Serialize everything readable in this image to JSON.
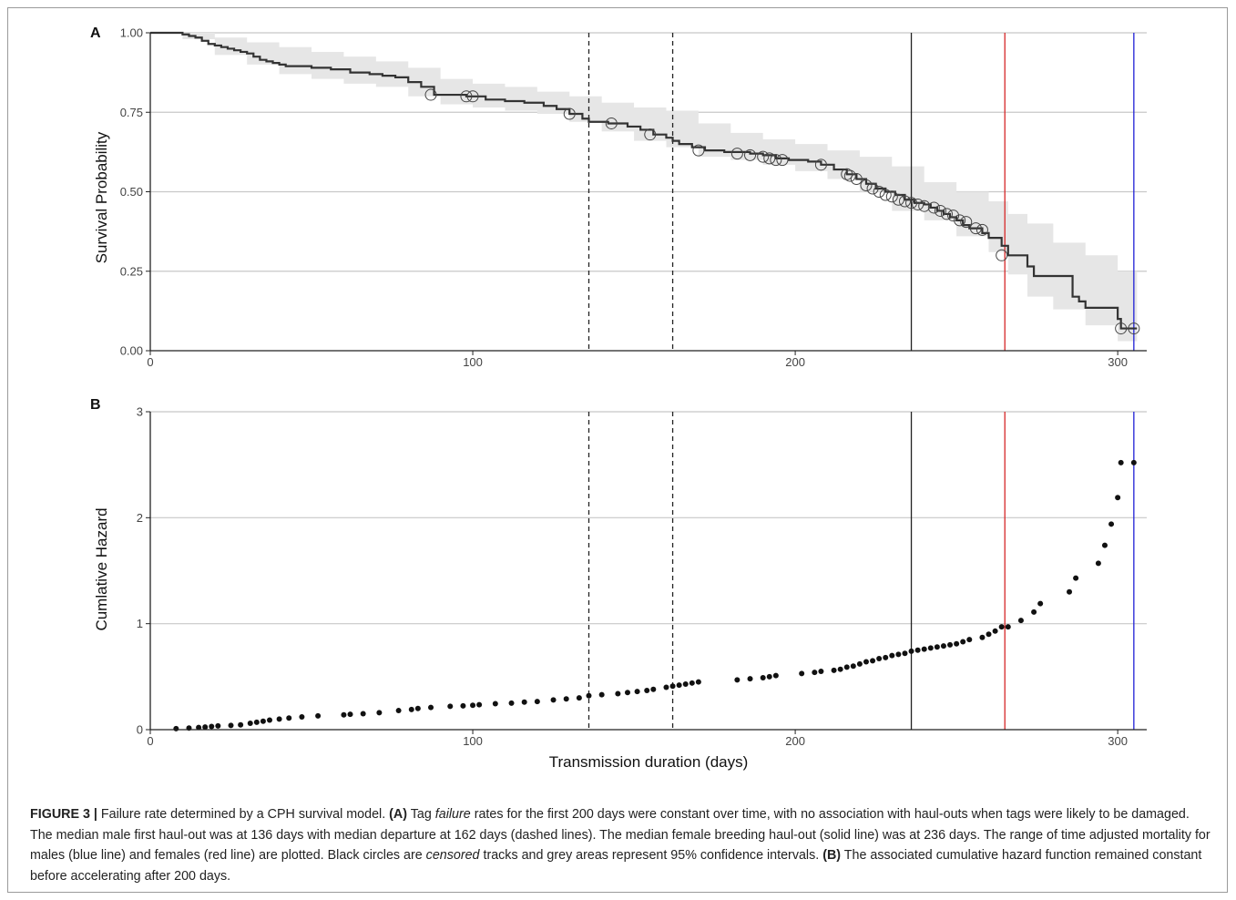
{
  "chart_data": [
    {
      "panel": "A",
      "type": "line",
      "step": true,
      "xlabel": "",
      "ylabel": "Survival Probability",
      "xlim": [
        0,
        309
      ],
      "ylim": [
        0,
        1
      ],
      "xticks": [
        0,
        100,
        200,
        300
      ],
      "yticks": [
        "0.00",
        "0.25",
        "0.50",
        "0.75",
        "1.00"
      ],
      "ytick_values": [
        0,
        0.25,
        0.5,
        0.75,
        1.0
      ],
      "grid": "horizontal",
      "survival_curve": [
        [
          0,
          1.0
        ],
        [
          8,
          1.0
        ],
        [
          10,
          0.995
        ],
        [
          12,
          0.99
        ],
        [
          14,
          0.985
        ],
        [
          16,
          0.975
        ],
        [
          18,
          0.965
        ],
        [
          20,
          0.96
        ],
        [
          22,
          0.955
        ],
        [
          24,
          0.95
        ],
        [
          26,
          0.945
        ],
        [
          28,
          0.94
        ],
        [
          30,
          0.935
        ],
        [
          32,
          0.925
        ],
        [
          34,
          0.915
        ],
        [
          36,
          0.91
        ],
        [
          38,
          0.905
        ],
        [
          40,
          0.9
        ],
        [
          42,
          0.895
        ],
        [
          50,
          0.89
        ],
        [
          56,
          0.885
        ],
        [
          62,
          0.875
        ],
        [
          68,
          0.87
        ],
        [
          72,
          0.865
        ],
        [
          76,
          0.86
        ],
        [
          80,
          0.845
        ],
        [
          84,
          0.83
        ],
        [
          88,
          0.805
        ],
        [
          98,
          0.8
        ],
        [
          104,
          0.79
        ],
        [
          110,
          0.785
        ],
        [
          116,
          0.78
        ],
        [
          122,
          0.77
        ],
        [
          126,
          0.76
        ],
        [
          130,
          0.745
        ],
        [
          134,
          0.73
        ],
        [
          136,
          0.72
        ],
        [
          142,
          0.715
        ],
        [
          148,
          0.705
        ],
        [
          152,
          0.695
        ],
        [
          156,
          0.68
        ],
        [
          160,
          0.67
        ],
        [
          162,
          0.66
        ],
        [
          164,
          0.65
        ],
        [
          168,
          0.64
        ],
        [
          172,
          0.63
        ],
        [
          178,
          0.625
        ],
        [
          186,
          0.62
        ],
        [
          190,
          0.615
        ],
        [
          194,
          0.605
        ],
        [
          198,
          0.6
        ],
        [
          204,
          0.595
        ],
        [
          208,
          0.585
        ],
        [
          212,
          0.57
        ],
        [
          216,
          0.555
        ],
        [
          219,
          0.54
        ],
        [
          222,
          0.525
        ],
        [
          225,
          0.51
        ],
        [
          228,
          0.5
        ],
        [
          231,
          0.49
        ],
        [
          234,
          0.475
        ],
        [
          237,
          0.465
        ],
        [
          240,
          0.46
        ],
        [
          242,
          0.45
        ],
        [
          244,
          0.44
        ],
        [
          246,
          0.43
        ],
        [
          248,
          0.42
        ],
        [
          250,
          0.41
        ],
        [
          252,
          0.395
        ],
        [
          254,
          0.385
        ],
        [
          258,
          0.37
        ],
        [
          260,
          0.355
        ],
        [
          264,
          0.33
        ],
        [
          266,
          0.3
        ],
        [
          272,
          0.265
        ],
        [
          274,
          0.235
        ],
        [
          286,
          0.17
        ],
        [
          288,
          0.155
        ],
        [
          290,
          0.135
        ],
        [
          300,
          0.1
        ],
        [
          301,
          0.07
        ],
        [
          306,
          0.07
        ]
      ],
      "ci_lower": [
        [
          0,
          1.0
        ],
        [
          10,
          0.98
        ],
        [
          20,
          0.93
        ],
        [
          30,
          0.9
        ],
        [
          40,
          0.87
        ],
        [
          50,
          0.855
        ],
        [
          60,
          0.84
        ],
        [
          70,
          0.83
        ],
        [
          80,
          0.8
        ],
        [
          90,
          0.775
        ],
        [
          100,
          0.765
        ],
        [
          110,
          0.755
        ],
        [
          120,
          0.745
        ],
        [
          130,
          0.72
        ],
        [
          140,
          0.69
        ],
        [
          150,
          0.66
        ],
        [
          160,
          0.64
        ],
        [
          170,
          0.61
        ],
        [
          180,
          0.6
        ],
        [
          190,
          0.585
        ],
        [
          200,
          0.565
        ],
        [
          210,
          0.54
        ],
        [
          220,
          0.5
        ],
        [
          230,
          0.44
        ],
        [
          240,
          0.41
        ],
        [
          250,
          0.36
        ],
        [
          260,
          0.31
        ],
        [
          266,
          0.24
        ],
        [
          272,
          0.17
        ],
        [
          280,
          0.13
        ],
        [
          290,
          0.08
        ],
        [
          300,
          0.03
        ],
        [
          306,
          0.02
        ]
      ],
      "ci_upper": [
        [
          0,
          1.0
        ],
        [
          10,
          1.0
        ],
        [
          20,
          0.985
        ],
        [
          30,
          0.97
        ],
        [
          40,
          0.955
        ],
        [
          50,
          0.94
        ],
        [
          60,
          0.925
        ],
        [
          70,
          0.91
        ],
        [
          80,
          0.89
        ],
        [
          90,
          0.855
        ],
        [
          100,
          0.84
        ],
        [
          110,
          0.83
        ],
        [
          120,
          0.815
        ],
        [
          130,
          0.8
        ],
        [
          140,
          0.78
        ],
        [
          150,
          0.765
        ],
        [
          160,
          0.755
        ],
        [
          170,
          0.715
        ],
        [
          180,
          0.685
        ],
        [
          190,
          0.665
        ],
        [
          200,
          0.65
        ],
        [
          210,
          0.63
        ],
        [
          220,
          0.61
        ],
        [
          230,
          0.58
        ],
        [
          240,
          0.53
        ],
        [
          250,
          0.5
        ],
        [
          260,
          0.47
        ],
        [
          266,
          0.43
        ],
        [
          272,
          0.4
        ],
        [
          280,
          0.34
        ],
        [
          290,
          0.3
        ],
        [
          300,
          0.25
        ],
        [
          306,
          0.2
        ]
      ],
      "censored": [
        [
          87,
          0.805
        ],
        [
          98,
          0.8
        ],
        [
          100,
          0.8
        ],
        [
          130,
          0.745
        ],
        [
          143,
          0.715
        ],
        [
          155,
          0.68
        ],
        [
          170,
          0.63
        ],
        [
          182,
          0.62
        ],
        [
          186,
          0.615
        ],
        [
          190,
          0.61
        ],
        [
          192,
          0.605
        ],
        [
          194,
          0.6
        ],
        [
          196,
          0.6
        ],
        [
          208,
          0.585
        ],
        [
          216,
          0.555
        ],
        [
          217,
          0.55
        ],
        [
          219,
          0.54
        ],
        [
          222,
          0.52
        ],
        [
          224,
          0.51
        ],
        [
          226,
          0.5
        ],
        [
          228,
          0.49
        ],
        [
          230,
          0.485
        ],
        [
          232,
          0.475
        ],
        [
          234,
          0.47
        ],
        [
          236,
          0.465
        ],
        [
          238,
          0.46
        ],
        [
          240,
          0.455
        ],
        [
          243,
          0.45
        ],
        [
          245,
          0.44
        ],
        [
          247,
          0.43
        ],
        [
          249,
          0.425
        ],
        [
          251,
          0.41
        ],
        [
          253,
          0.405
        ],
        [
          256,
          0.385
        ],
        [
          258,
          0.38
        ],
        [
          264,
          0.3
        ],
        [
          301,
          0.07
        ],
        [
          305,
          0.07
        ]
      ]
    },
    {
      "panel": "B",
      "type": "scatter",
      "xlabel": "Transmission duration (days)",
      "ylabel": "Cumlative Hazard",
      "xlim": [
        0,
        309
      ],
      "ylim": [
        0,
        3
      ],
      "xticks": [
        0,
        100,
        200,
        300
      ],
      "yticks": [
        "0",
        "1",
        "2",
        "3"
      ],
      "ytick_values": [
        0,
        1,
        2,
        3
      ],
      "grid": "horizontal",
      "points": [
        [
          8,
          0.01
        ],
        [
          12,
          0.015
        ],
        [
          15,
          0.02
        ],
        [
          17,
          0.025
        ],
        [
          19,
          0.03
        ],
        [
          21,
          0.035
        ],
        [
          25,
          0.04
        ],
        [
          28,
          0.045
        ],
        [
          31,
          0.06
        ],
        [
          33,
          0.07
        ],
        [
          35,
          0.08
        ],
        [
          37,
          0.09
        ],
        [
          40,
          0.1
        ],
        [
          43,
          0.11
        ],
        [
          47,
          0.12
        ],
        [
          52,
          0.13
        ],
        [
          60,
          0.14
        ],
        [
          62,
          0.145
        ],
        [
          66,
          0.15
        ],
        [
          71,
          0.16
        ],
        [
          77,
          0.18
        ],
        [
          81,
          0.19
        ],
        [
          83,
          0.2
        ],
        [
          87,
          0.21
        ],
        [
          93,
          0.22
        ],
        [
          97,
          0.225
        ],
        [
          100,
          0.23
        ],
        [
          102,
          0.235
        ],
        [
          107,
          0.245
        ],
        [
          112,
          0.25
        ],
        [
          116,
          0.26
        ],
        [
          120,
          0.265
        ],
        [
          125,
          0.28
        ],
        [
          129,
          0.29
        ],
        [
          133,
          0.3
        ],
        [
          136,
          0.32
        ],
        [
          140,
          0.33
        ],
        [
          145,
          0.34
        ],
        [
          148,
          0.35
        ],
        [
          151,
          0.36
        ],
        [
          154,
          0.37
        ],
        [
          156,
          0.38
        ],
        [
          160,
          0.4
        ],
        [
          162,
          0.41
        ],
        [
          164,
          0.42
        ],
        [
          166,
          0.43
        ],
        [
          168,
          0.44
        ],
        [
          170,
          0.45
        ],
        [
          182,
          0.47
        ],
        [
          186,
          0.48
        ],
        [
          190,
          0.49
        ],
        [
          192,
          0.5
        ],
        [
          194,
          0.51
        ],
        [
          202,
          0.53
        ],
        [
          206,
          0.54
        ],
        [
          208,
          0.55
        ],
        [
          212,
          0.56
        ],
        [
          214,
          0.57
        ],
        [
          216,
          0.59
        ],
        [
          218,
          0.6
        ],
        [
          220,
          0.62
        ],
        [
          222,
          0.64
        ],
        [
          224,
          0.65
        ],
        [
          226,
          0.67
        ],
        [
          228,
          0.68
        ],
        [
          230,
          0.7
        ],
        [
          232,
          0.71
        ],
        [
          234,
          0.72
        ],
        [
          236,
          0.74
        ],
        [
          238,
          0.75
        ],
        [
          240,
          0.76
        ],
        [
          242,
          0.77
        ],
        [
          244,
          0.78
        ],
        [
          246,
          0.79
        ],
        [
          248,
          0.8
        ],
        [
          250,
          0.81
        ],
        [
          252,
          0.83
        ],
        [
          254,
          0.85
        ],
        [
          258,
          0.87
        ],
        [
          260,
          0.9
        ],
        [
          262,
          0.93
        ],
        [
          264,
          0.97
        ],
        [
          266,
          0.97
        ],
        [
          270,
          1.03
        ],
        [
          274,
          1.11
        ],
        [
          276,
          1.19
        ],
        [
          285,
          1.3
        ],
        [
          287,
          1.43
        ],
        [
          294,
          1.57
        ],
        [
          296,
          1.74
        ],
        [
          298,
          1.94
        ],
        [
          300,
          2.19
        ],
        [
          301,
          2.52
        ],
        [
          305,
          2.52
        ]
      ]
    }
  ],
  "reference_lines": [
    {
      "x": 136,
      "style": "dashed",
      "color": "#222222"
    },
    {
      "x": 162,
      "style": "dashed",
      "color": "#222222"
    },
    {
      "x": 236,
      "style": "solid",
      "color": "#222222"
    },
    {
      "x": 265,
      "style": "solid",
      "color": "#d62728"
    },
    {
      "x": 305,
      "style": "solid",
      "color": "#1f1fd6"
    }
  ],
  "colors": {
    "curve": "#333333",
    "ci_fill": "#e6e6e6",
    "grid": "#c8c8c8",
    "points": "#111111",
    "axis": "#222222"
  },
  "caption": {
    "label": "FIGURE 3 |",
    "intro": " Failure rate determined by a CPH survival model. ",
    "a_label": "(A)",
    "a_text_1": " Tag ",
    "a_italic": "failure",
    "a_text_2": " rates for the first 200 days were constant over time, with no association with haul-outs when tags were likely to be damaged. The median male first haul-out was at 136 days with median departure at 162 days (dashed lines). The median female breeding haul-out (solid line) was at 236 days. The range of time adjusted mortality for males (blue line) and females (red line) are plotted. Black circles are ",
    "a_italic_2": "censored",
    "a_text_3": " tracks and grey areas represent 95% confidence intervals. ",
    "b_label": "(B)",
    "b_text": " The associated cumulative hazard function remained constant before accelerating after 200 days."
  }
}
